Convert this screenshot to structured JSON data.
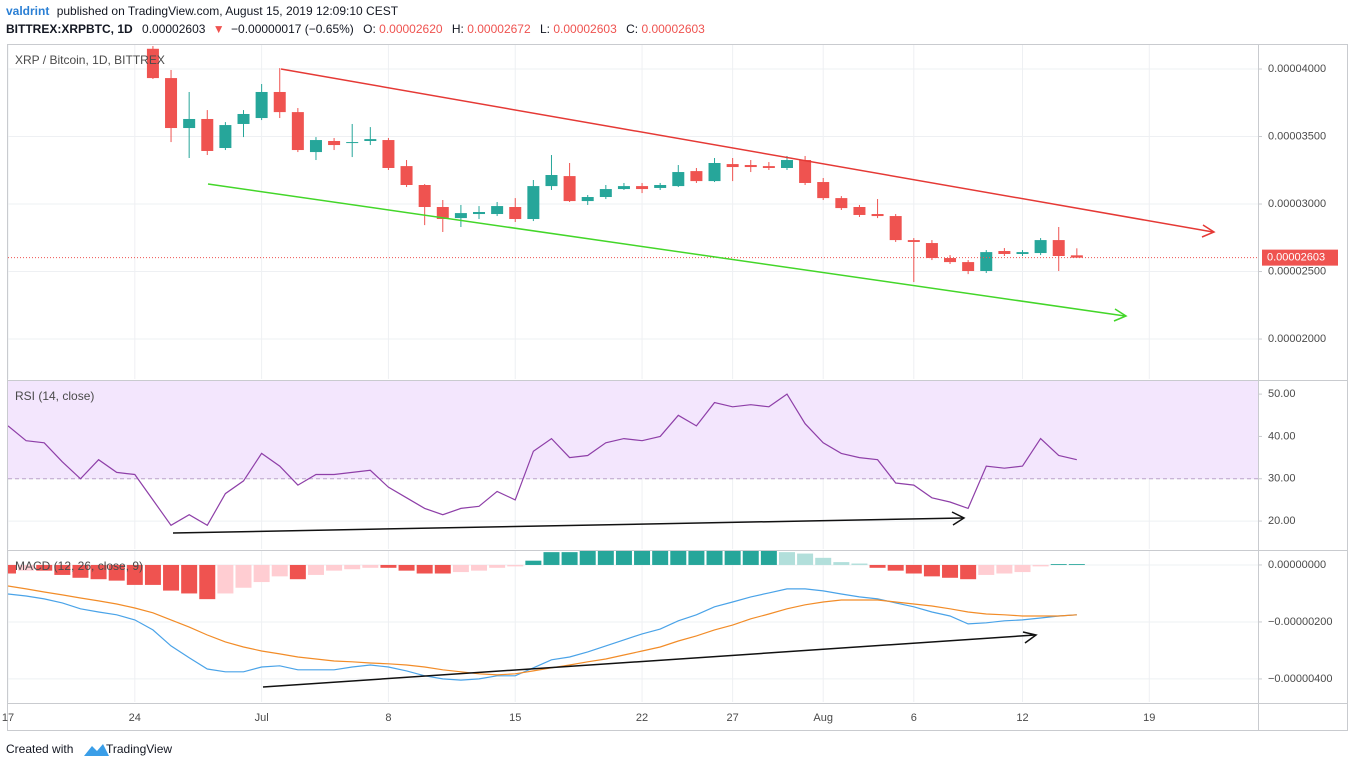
{
  "header": {
    "author": "valdrint",
    "published": "published on TradingView.com, August 15, 2019 12:09:10 CEST",
    "symbol": "BITTREX:XRPBTC, 1D",
    "last": "0.00002603",
    "arrow": "▼",
    "change": "−0.00000017 (−0.65%)",
    "open_label": "O:",
    "open": "0.00002620",
    "high_label": "H:",
    "high": "0.00002672",
    "low_label": "L:",
    "low": "0.00002603",
    "close_label": "C:",
    "close": "0.00002603"
  },
  "chart_data": [
    {
      "type": "candlestick",
      "title": "XRP / Bitcoin, 1D, BITTREX",
      "x": [
        "06-25",
        "06-26",
        "06-27",
        "06-28",
        "06-29",
        "06-30",
        "07-01",
        "07-02",
        "07-03",
        "07-04",
        "07-05",
        "07-06",
        "07-07",
        "07-08",
        "07-09",
        "07-10",
        "07-11",
        "07-12",
        "07-13",
        "07-14",
        "07-15",
        "07-16",
        "07-17",
        "07-18",
        "07-19",
        "07-20",
        "07-21",
        "07-22",
        "07-23",
        "07-24",
        "07-25",
        "07-26",
        "07-27",
        "07-28",
        "07-29",
        "07-30",
        "07-31",
        "08-01",
        "08-02",
        "08-03",
        "08-04",
        "08-05",
        "08-06",
        "08-07",
        "08-08",
        "08-09",
        "08-10",
        "08-11",
        "08-12",
        "08-13",
        "08-14",
        "08-15"
      ],
      "open": [
        4.15e-05,
        3.933e-05,
        3.563e-05,
        3.63e-05,
        3.415e-05,
        3.593e-05,
        3.637e-05,
        3.83e-05,
        3.681e-05,
        3.385e-05,
        3.467e-05,
        3.452e-05,
        3.467e-05,
        3.474e-05,
        3.281e-05,
        3.141e-05,
        2.978e-05,
        2.896e-05,
        2.926e-05,
        2.926e-05,
        2.978e-05,
        2.889e-05,
        3.133e-05,
        3.207e-05,
        3.022e-05,
        3.052e-05,
        3.111e-05,
        3.133e-05,
        3.119e-05,
        3.133e-05,
        3.244e-05,
        3.17e-05,
        3.296e-05,
        3.289e-05,
        3.281e-05,
        3.267e-05,
        3.326e-05,
        3.163e-05,
        3.044e-05,
        2.978e-05,
        2.926e-05,
        2.911e-05,
        2.733e-05,
        2.711e-05,
        2.6e-05,
        2.57e-05,
        2.504e-05,
        2.652e-05,
        2.63e-05,
        2.637e-05,
        2.733e-05,
        2.62e-05
      ],
      "high": [
        4.17e-05,
        3.993e-05,
        3.83e-05,
        3.696e-05,
        3.607e-05,
        3.696e-05,
        3.889e-05,
        4.007e-05,
        3.711e-05,
        3.496e-05,
        3.489e-05,
        3.593e-05,
        3.57e-05,
        3.489e-05,
        3.326e-05,
        3.148e-05,
        3.03e-05,
        2.993e-05,
        2.985e-05,
        3.015e-05,
        3.044e-05,
        3.178e-05,
        3.363e-05,
        3.304e-05,
        3.067e-05,
        3.141e-05,
        3.156e-05,
        3.156e-05,
        3.156e-05,
        3.289e-05,
        3.267e-05,
        3.341e-05,
        3.341e-05,
        3.326e-05,
        3.311e-05,
        3.356e-05,
        3.356e-05,
        3.193e-05,
        3.059e-05,
        2.993e-05,
        3.037e-05,
        2.926e-05,
        2.748e-05,
        2.733e-05,
        2.622e-05,
        2.585e-05,
        2.659e-05,
        2.674e-05,
        2.659e-05,
        2.748e-05,
        2.83e-05,
        2.672e-05
      ],
      "low": [
        3.926e-05,
        3.459e-05,
        3.341e-05,
        3.363e-05,
        3.4e-05,
        3.496e-05,
        3.622e-05,
        3.637e-05,
        3.385e-05,
        3.326e-05,
        3.4e-05,
        3.348e-05,
        3.437e-05,
        3.252e-05,
        3.126e-05,
        2.844e-05,
        2.793e-05,
        2.83e-05,
        2.889e-05,
        2.911e-05,
        2.867e-05,
        2.874e-05,
        3.104e-05,
        3.015e-05,
        2.993e-05,
        3.037e-05,
        3.104e-05,
        3.081e-05,
        3.104e-05,
        3.126e-05,
        3.156e-05,
        3.163e-05,
        3.17e-05,
        3.237e-05,
        3.252e-05,
        3.252e-05,
        3.141e-05,
        3.03e-05,
        2.956e-05,
        2.904e-05,
        2.896e-05,
        2.719e-05,
        2.422e-05,
        2.585e-05,
        2.556e-05,
        2.481e-05,
        2.489e-05,
        2.615e-05,
        2.615e-05,
        2.622e-05,
        2.504e-05,
        2.603e-05
      ],
      "close": [
        3.933e-05,
        3.563e-05,
        3.63e-05,
        3.393e-05,
        3.585e-05,
        3.667e-05,
        3.83e-05,
        3.681e-05,
        3.4e-05,
        3.474e-05,
        3.437e-05,
        3.459e-05,
        3.481e-05,
        3.267e-05,
        3.141e-05,
        2.978e-05,
        2.889e-05,
        2.933e-05,
        2.941e-05,
        2.985e-05,
        2.889e-05,
        3.133e-05,
        3.215e-05,
        3.022e-05,
        3.052e-05,
        3.111e-05,
        3.133e-05,
        3.111e-05,
        3.141e-05,
        3.237e-05,
        3.17e-05,
        3.304e-05,
        3.274e-05,
        3.274e-05,
        3.267e-05,
        3.326e-05,
        3.156e-05,
        3.044e-05,
        2.97e-05,
        2.919e-05,
        2.911e-05,
        2.733e-05,
        2.719e-05,
        2.6e-05,
        2.57e-05,
        2.504e-05,
        2.644e-05,
        2.63e-05,
        2.644e-05,
        2.733e-05,
        2.615e-05,
        2.603e-05
      ],
      "colors": {
        "up": "#26a69a",
        "down": "#ef5350"
      },
      "xlim": [
        "06-17",
        "08-25"
      ],
      "ylim": [
        1.704e-05,
        4.178e-05
      ],
      "yticks": [
        {
          "value": 4e-05,
          "label": "0.00004000"
        },
        {
          "value": 3.5e-05,
          "label": "0.00003500"
        },
        {
          "value": 3e-05,
          "label": "0.00003000"
        },
        {
          "value": 2.5e-05,
          "label": "0.00002500"
        },
        {
          "value": 2e-05,
          "label": "0.00002000"
        }
      ],
      "last_price": {
        "value": 2.603e-05,
        "label": "0.00002603"
      }
    },
    {
      "type": "line",
      "title": "RSI (14, close)",
      "x": [
        "06-17",
        "06-18",
        "06-19",
        "06-20",
        "06-21",
        "06-22",
        "06-23",
        "06-24",
        "06-25",
        "06-26",
        "06-27",
        "06-28",
        "06-29",
        "06-30",
        "07-01",
        "07-02",
        "07-03",
        "07-04",
        "07-05",
        "07-06",
        "07-07",
        "07-08",
        "07-09",
        "07-10",
        "07-11",
        "07-12",
        "07-13",
        "07-14",
        "07-15",
        "07-16",
        "07-17",
        "07-18",
        "07-19",
        "07-20",
        "07-21",
        "07-22",
        "07-23",
        "07-24",
        "07-25",
        "07-26",
        "07-27",
        "07-28",
        "07-29",
        "07-30",
        "07-31",
        "08-01",
        "08-02",
        "08-03",
        "08-04",
        "08-05",
        "08-06",
        "08-07",
        "08-08",
        "08-09",
        "08-10",
        "08-11",
        "08-12",
        "08-13",
        "08-14",
        "08-15"
      ],
      "values": [
        42.5,
        39,
        38.5,
        34,
        30,
        34.5,
        31.5,
        31,
        25,
        19,
        21.5,
        19,
        26.5,
        29.5,
        36,
        33,
        28.5,
        31,
        31,
        31.5,
        32,
        28,
        25.5,
        23,
        21.5,
        23,
        23.5,
        27,
        25,
        36.5,
        39.5,
        35,
        35.5,
        38.5,
        39.5,
        39,
        40,
        45,
        42.5,
        48,
        47,
        47.5,
        47,
        50,
        43,
        38.5,
        36,
        35,
        34.5,
        29,
        28.5,
        25.5,
        24.5,
        23,
        33,
        32.5,
        33,
        39.5,
        35.5,
        34.5
      ],
      "color": "#8e3fa8",
      "band": [
        30,
        70
      ],
      "band_color": "#f3e6fd",
      "xlim": [
        "06-17",
        "08-25"
      ],
      "ylim": [
        13.4,
        53.1
      ],
      "yticks": [
        {
          "value": 50,
          "label": "50.00"
        },
        {
          "value": 40,
          "label": "40.00"
        },
        {
          "value": 30,
          "label": "30.00"
        },
        {
          "value": 20,
          "label": "20.00"
        }
      ]
    },
    {
      "type": "macd",
      "title": "MACD (12, 26, close, 9)",
      "x": [
        "06-17",
        "06-18",
        "06-19",
        "06-20",
        "06-21",
        "06-22",
        "06-23",
        "06-24",
        "06-25",
        "06-26",
        "06-27",
        "06-28",
        "06-29",
        "06-30",
        "07-01",
        "07-02",
        "07-03",
        "07-04",
        "07-05",
        "07-06",
        "07-07",
        "07-08",
        "07-09",
        "07-10",
        "07-11",
        "07-12",
        "07-13",
        "07-14",
        "07-15",
        "07-16",
        "07-17",
        "07-18",
        "07-19",
        "07-20",
        "07-21",
        "07-22",
        "07-23",
        "07-24",
        "07-25",
        "07-26",
        "07-27",
        "07-28",
        "07-29",
        "07-30",
        "07-31",
        "08-01",
        "08-02",
        "08-03",
        "08-04",
        "08-05",
        "08-06",
        "08-07",
        "08-08",
        "08-09",
        "08-10",
        "08-11",
        "08-12",
        "08-13",
        "08-14",
        "08-15"
      ],
      "histogram": [
        -3e-07,
        -2e-07,
        -2e-07,
        -3.5e-07,
        -4.5e-07,
        -5e-07,
        -5.5e-07,
        -7e-07,
        -7e-07,
        -9e-07,
        -1e-06,
        -1.2e-06,
        -1e-06,
        -8e-07,
        -6e-07,
        -4e-07,
        -5e-07,
        -3.5e-07,
        -2e-07,
        -1.5e-07,
        -1e-07,
        -1e-07,
        -2e-07,
        -3e-07,
        -3e-07,
        -2.5e-07,
        -2e-07,
        -1e-07,
        -5e-08,
        1.5e-07,
        4.5e-07,
        4.5e-07,
        5e-07,
        5e-07,
        5e-07,
        5e-07,
        5e-07,
        5e-07,
        5e-07,
        5e-07,
        5e-07,
        5e-07,
        5e-07,
        4.5e-07,
        4e-07,
        2.5e-07,
        1e-07,
        5e-08,
        -1e-07,
        -2e-07,
        -3e-07,
        -4e-07,
        -4.5e-07,
        -5e-07,
        -3.5e-07,
        -3e-07,
        -2.5e-07,
        -5e-08,
        3e-08,
        3e-08
      ],
      "macd": [
        -1.02e-06,
        -1.09e-06,
        -1.19e-06,
        -1.33e-06,
        -1.54e-06,
        -1.65e-06,
        -1.75e-06,
        -1.93e-06,
        -2.28e-06,
        -2.84e-06,
        -3.26e-06,
        -3.65e-06,
        -3.75e-06,
        -3.75e-06,
        -3.58e-06,
        -3.54e-06,
        -3.68e-06,
        -3.68e-06,
        -3.68e-06,
        -3.58e-06,
        -3.51e-06,
        -3.58e-06,
        -3.72e-06,
        -3.89e-06,
        -4e-06,
        -4.04e-06,
        -4e-06,
        -3.89e-06,
        -3.89e-06,
        -3.61e-06,
        -3.33e-06,
        -3.23e-06,
        -3.05e-06,
        -2.84e-06,
        -2.63e-06,
        -2.42e-06,
        -2.25e-06,
        -1.96e-06,
        -1.75e-06,
        -1.47e-06,
        -1.3e-06,
        -1.12e-06,
        -9.8e-07,
        -8.4e-07,
        -8.4e-07,
        -9.1e-07,
        -1.02e-06,
        -1.12e-06,
        -1.19e-06,
        -1.33e-06,
        -1.47e-06,
        -1.65e-06,
        -1.79e-06,
        -2.07e-06,
        -2.03e-06,
        -1.96e-06,
        -1.93e-06,
        -1.86e-06,
        -1.79e-06,
        -1.75e-06
      ],
      "signal": [
        -7.4e-07,
        -8.4e-07,
        -9.5e-07,
        -1.05e-06,
        -1.16e-06,
        -1.26e-06,
        -1.37e-06,
        -1.51e-06,
        -1.68e-06,
        -1.93e-06,
        -2.18e-06,
        -2.46e-06,
        -2.7e-06,
        -2.88e-06,
        -3.02e-06,
        -3.12e-06,
        -3.23e-06,
        -3.3e-06,
        -3.37e-06,
        -3.4e-06,
        -3.44e-06,
        -3.47e-06,
        -3.51e-06,
        -3.58e-06,
        -3.68e-06,
        -3.75e-06,
        -3.82e-06,
        -3.86e-06,
        -3.82e-06,
        -3.72e-06,
        -3.61e-06,
        -3.51e-06,
        -3.4e-06,
        -3.3e-06,
        -3.16e-06,
        -3.02e-06,
        -2.88e-06,
        -2.67e-06,
        -2.49e-06,
        -2.28e-06,
        -2.11e-06,
        -1.89e-06,
        -1.72e-06,
        -1.54e-06,
        -1.4e-06,
        -1.3e-06,
        -1.23e-06,
        -1.23e-06,
        -1.23e-06,
        -1.3e-06,
        -1.37e-06,
        -1.44e-06,
        -1.54e-06,
        -1.65e-06,
        -1.72e-06,
        -1.75e-06,
        -1.79e-06,
        -1.79e-06,
        -1.79e-06,
        -1.75e-06
      ],
      "macd_color": "#4aa3e8",
      "signal_color": "#f28c28",
      "histogram_colors": {
        "rising_above": "#26a69a",
        "falling_above": "#b2dfdb",
        "rising_below": "#ffcdd2",
        "falling_below": "#ef5350"
      },
      "xlim": [
        "06-17",
        "08-25"
      ],
      "ylim": [
        -4.81e-06,
        4.9e-07
      ],
      "yticks": [
        {
          "value": 0,
          "label": "0.00000000"
        },
        {
          "value": -2e-06,
          "label": "−0.00000200"
        },
        {
          "value": -4e-06,
          "label": "−0.00000400"
        }
      ],
      "xticks": [
        {
          "value": "06-17",
          "label": "17"
        },
        {
          "value": "06-24",
          "label": "24"
        },
        {
          "value": "07-01",
          "label": "Jul"
        },
        {
          "value": "07-08",
          "label": "8"
        },
        {
          "value": "07-15",
          "label": "15"
        },
        {
          "value": "07-22",
          "label": "22"
        },
        {
          "value": "07-27",
          "label": "27"
        },
        {
          "value": "08-01",
          "label": "Aug"
        },
        {
          "value": "08-06",
          "label": "6"
        },
        {
          "value": "08-12",
          "label": "12"
        },
        {
          "value": "08-19",
          "label": "19"
        }
      ]
    }
  ],
  "footer": {
    "created": "Created with",
    "brand": "TradingView"
  }
}
